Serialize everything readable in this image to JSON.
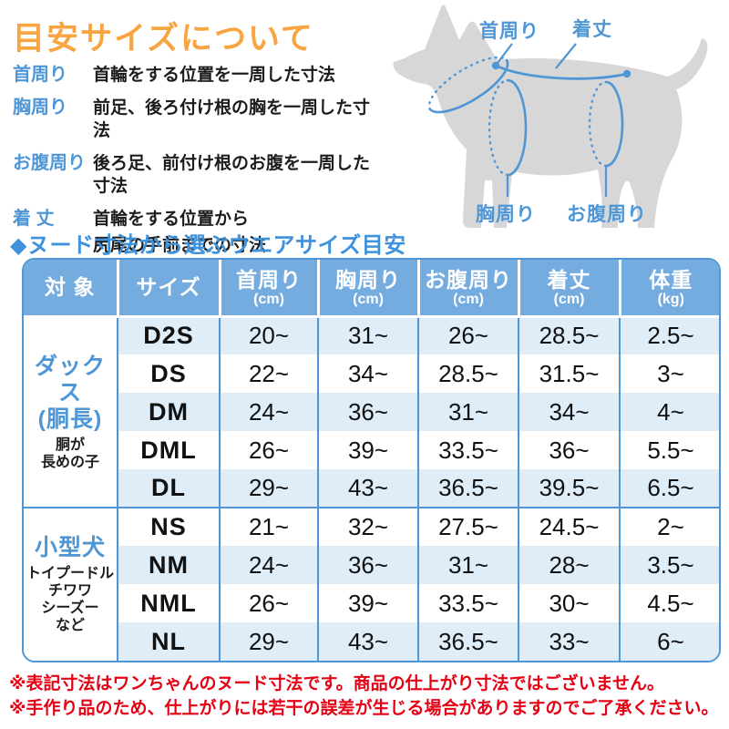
{
  "title": "目安サイズについて",
  "legend": {
    "items": [
      {
        "term": "首周り",
        "desc": "首輪をする位置を一周した寸法",
        "desc2": ""
      },
      {
        "term": "胸周り",
        "desc": "前足、後ろ付け根の胸を一周した寸法",
        "desc2": ""
      },
      {
        "term": "お腹周り",
        "desc": "後ろ足、前付け根のお腹を一周した寸法",
        "desc2": ""
      },
      {
        "term": "着 丈",
        "desc": "首輪をする位置から",
        "desc2": "尻尾の手前までの寸法"
      }
    ]
  },
  "diagram": {
    "labels": {
      "neck": "首周り",
      "length": "着丈",
      "chest": "胸周り",
      "belly": "お腹周り"
    }
  },
  "chart_data": {
    "type": "table",
    "title": "◆ヌード寸法から選ぶウエアサイズ目安",
    "columns": [
      {
        "label": "対 象",
        "unit": ""
      },
      {
        "label": "サイズ",
        "unit": ""
      },
      {
        "label": "首周り",
        "unit": "(cm)"
      },
      {
        "label": "胸周り",
        "unit": "(cm)"
      },
      {
        "label": "お腹周り",
        "unit": "(cm)"
      },
      {
        "label": "着丈",
        "unit": "(cm)"
      },
      {
        "label": "体重",
        "unit": "(kg)"
      }
    ],
    "groups": [
      {
        "name": "ダックス",
        "name2": "(胴長)",
        "sub": [
          "胴が",
          "長めの子"
        ],
        "rows": [
          {
            "size": "D2S",
            "values": [
              "20~",
              "31~",
              "26~",
              "28.5~",
              "2.5~"
            ]
          },
          {
            "size": "DS",
            "values": [
              "22~",
              "34~",
              "28.5~",
              "31.5~",
              "3~"
            ]
          },
          {
            "size": "DM",
            "values": [
              "24~",
              "36~",
              "31~",
              "34~",
              "4~"
            ]
          },
          {
            "size": "DML",
            "values": [
              "26~",
              "39~",
              "33.5~",
              "36~",
              "5.5~"
            ]
          },
          {
            "size": "DL",
            "values": [
              "29~",
              "43~",
              "36.5~",
              "39.5~",
              "6.5~"
            ]
          }
        ]
      },
      {
        "name": "小型犬",
        "name2": "",
        "sub": [
          "トイプードル",
          "チワワ",
          "シーズー",
          "など"
        ],
        "rows": [
          {
            "size": "NS",
            "values": [
              "21~",
              "32~",
              "27.5~",
              "24.5~",
              "2~"
            ]
          },
          {
            "size": "NM",
            "values": [
              "24~",
              "36~",
              "31~",
              "28~",
              "3.5~"
            ]
          },
          {
            "size": "NML",
            "values": [
              "26~",
              "39~",
              "33.5~",
              "30~",
              "4.5~"
            ]
          },
          {
            "size": "NL",
            "values": [
              "29~",
              "43~",
              "36.5~",
              "33~",
              "6~"
            ]
          }
        ]
      }
    ]
  },
  "notes": [
    "※表記寸法はワンちゃんのヌード寸法です。商品の仕上がり寸法ではございません。",
    "※手作り品のため、仕上がりには若干の誤差が生じる場合がありますのでご了承ください。"
  ],
  "colors": {
    "accent_orange": "#F8A440",
    "accent_blue": "#4E96D6",
    "heading_blue": "#3E92DC",
    "table_header_blue": "#75ACE0",
    "row_alt_blue": "#DFEDF9",
    "note_red": "#E60014",
    "dog_gray": "#D7D7D7"
  }
}
